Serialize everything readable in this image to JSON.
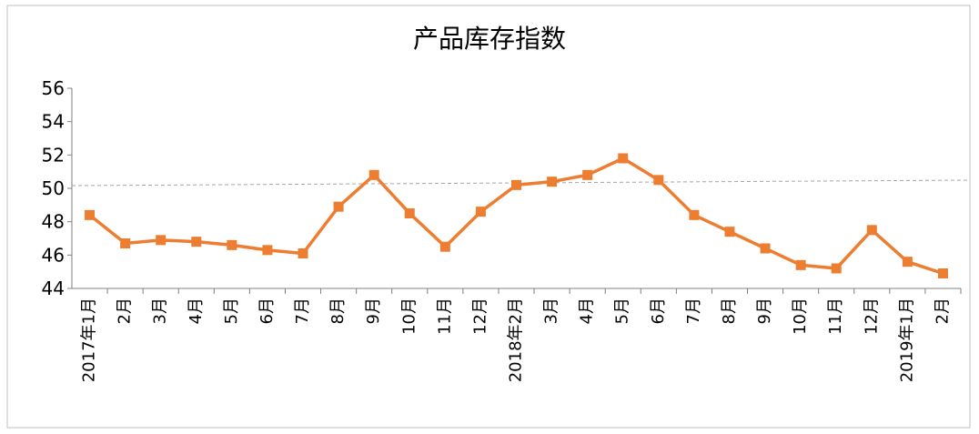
{
  "chart_data": {
    "type": "line",
    "title": "产品库存指数",
    "categories": [
      "2017年1月",
      "2月",
      "3月",
      "4月",
      "5月",
      "6月",
      "7月",
      "8月",
      "9月",
      "10月",
      "11月",
      "12月",
      "2018年2月",
      "3月",
      "4月",
      "5月",
      "6月",
      "7月",
      "8月",
      "9月",
      "10月",
      "11月",
      "12月",
      "2019年1月",
      "2月"
    ],
    "series": [
      {
        "name": "产品库存指数",
        "color": "#ed7d31",
        "values": [
          48.4,
          46.7,
          46.9,
          46.8,
          46.6,
          46.3,
          46.1,
          48.9,
          50.8,
          48.5,
          46.5,
          48.6,
          50.2,
          50.4,
          50.8,
          51.8,
          50.5,
          48.4,
          47.4,
          46.4,
          45.4,
          45.2,
          47.5,
          45.6,
          44.9
        ]
      }
    ],
    "ylim": [
      44,
      56
    ],
    "yticks": [
      44,
      46,
      48,
      50,
      52,
      54,
      56
    ],
    "reference_line": 50
  }
}
